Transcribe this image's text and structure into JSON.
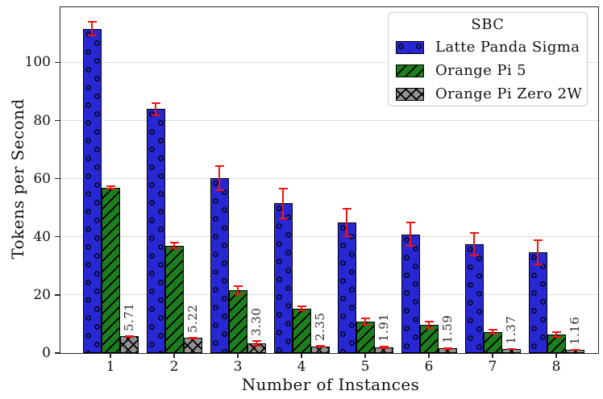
{
  "figure": {
    "ylabel": "Tokens per Second",
    "xlabel": "Number of Instances"
  },
  "legend": {
    "title": "SBC",
    "entries": [
      {
        "label": "Latte Panda Sigma",
        "color": "#2727d3",
        "hatch": "circles"
      },
      {
        "label": "Orange Pi 5",
        "color": "#1e7d1e",
        "hatch": "slash"
      },
      {
        "label": "Orange Pi Zero 2W",
        "color": "#919191",
        "hatch": "cross"
      }
    ]
  },
  "chart_data": {
    "type": "bar",
    "title": "",
    "xlabel": "Number of Instances",
    "ylabel": "Tokens per Second",
    "legend_title": "SBC",
    "legend_position": "upper right",
    "grid": "horizontal dotted",
    "categories": [
      "1",
      "2",
      "3",
      "4",
      "5",
      "6",
      "7",
      "8"
    ],
    "yticks": [
      0,
      20,
      40,
      60,
      80,
      100
    ],
    "ylim": [
      0,
      119
    ],
    "error_bar_color": "#ee1410",
    "bar_edge_color": "#000000",
    "series": [
      {
        "name": "Latte Panda Sigma",
        "color": "#2727d3",
        "hatch": "o",
        "values": [
          111.6,
          84.0,
          60.2,
          51.5,
          44.9,
          40.9,
          37.4,
          34.7
        ],
        "errors": [
          2.6,
          2.4,
          4.4,
          5.5,
          4.9,
          4.2,
          4.1,
          4.4
        ]
      },
      {
        "name": "Orange Pi 5",
        "color": "#1e7d1e",
        "hatch": "/",
        "values": [
          57.0,
          37.0,
          21.7,
          15.3,
          10.8,
          9.7,
          7.3,
          6.3
        ],
        "errors": [
          0.7,
          1.2,
          1.6,
          1.0,
          1.3,
          1.3,
          1.0,
          1.1
        ]
      },
      {
        "name": "Orange Pi Zero 2W",
        "color": "#919191",
        "hatch": "x",
        "values": [
          5.71,
          5.22,
          3.3,
          2.35,
          1.91,
          1.59,
          1.37,
          1.16
        ],
        "errors": [
          0.4,
          0.45,
          1.1,
          0.4,
          0.55,
          0.35,
          0.3,
          0.3
        ],
        "bar_labels": [
          "5.71",
          "5.22",
          "3.30",
          "2.35",
          "1.91",
          "1.59",
          "1.37",
          "1.16"
        ]
      }
    ]
  }
}
